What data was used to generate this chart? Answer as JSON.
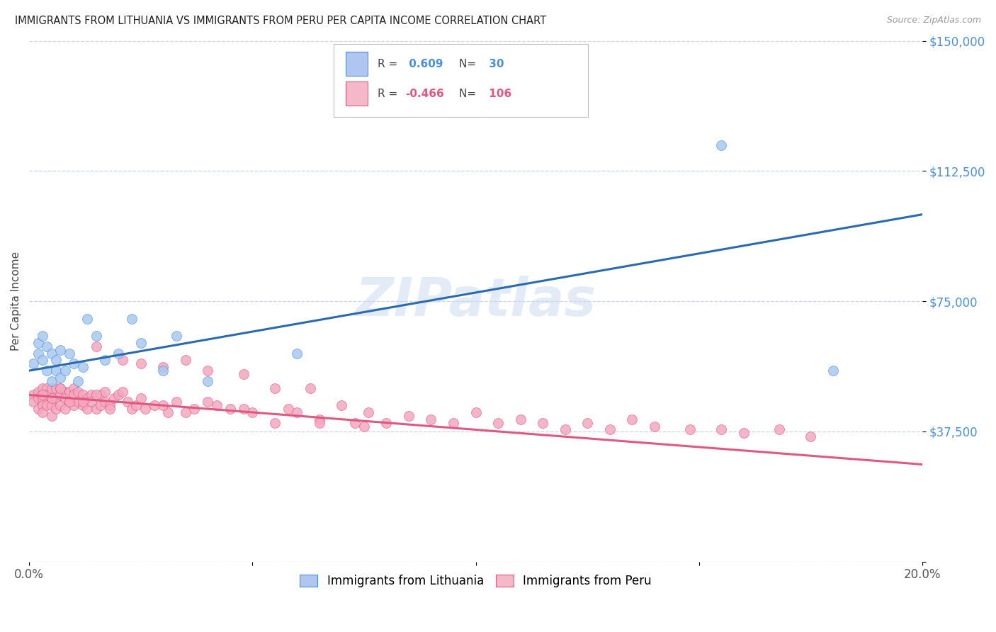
{
  "title": "IMMIGRANTS FROM LITHUANIA VS IMMIGRANTS FROM PERU PER CAPITA INCOME CORRELATION CHART",
  "source": "Source: ZipAtlas.com",
  "ylabel": "Per Capita Income",
  "x_min": 0.0,
  "x_max": 0.2,
  "y_min": 0,
  "y_max": 150000,
  "x_ticks": [
    0.0,
    0.05,
    0.1,
    0.15,
    0.2
  ],
  "x_tick_labels": [
    "0.0%",
    "",
    "",
    "",
    "20.0%"
  ],
  "y_ticks": [
    0,
    37500,
    75000,
    112500,
    150000
  ],
  "y_tick_labels": [
    "",
    "$37,500",
    "$75,000",
    "$112,500",
    "$150,000"
  ],
  "legend_labels": [
    "Immigrants from Lithuania",
    "Immigrants from Peru"
  ],
  "legend_box_colors": [
    "#aec6f0",
    "#f4b8c8"
  ],
  "blue_color": "#4a90d9",
  "pink_color": "#e05880",
  "blue_line_color": "#2a6aaf",
  "pink_line_color": "#e05880",
  "blue_dot_facecolor": "#aac8f0",
  "pink_dot_facecolor": "#f4a8c0",
  "grid_color": "#c8d4e8",
  "background_color": "#ffffff",
  "watermark": "ZIPatlas",
  "R_blue": 0.609,
  "N_blue": 30,
  "R_pink": -0.466,
  "N_pink": 106,
  "blue_line_y0": 55000,
  "blue_line_y1": 100000,
  "pink_line_y0": 48000,
  "pink_line_y1": 28000,
  "blue_scatter_x": [
    0.001,
    0.002,
    0.002,
    0.003,
    0.003,
    0.004,
    0.004,
    0.005,
    0.005,
    0.006,
    0.006,
    0.007,
    0.007,
    0.008,
    0.009,
    0.01,
    0.011,
    0.012,
    0.013,
    0.015,
    0.017,
    0.02,
    0.023,
    0.025,
    0.03,
    0.033,
    0.04,
    0.06,
    0.155,
    0.18
  ],
  "blue_scatter_y": [
    57000,
    63000,
    60000,
    65000,
    58000,
    62000,
    55000,
    60000,
    52000,
    58000,
    55000,
    61000,
    53000,
    55000,
    60000,
    57000,
    52000,
    56000,
    70000,
    65000,
    58000,
    60000,
    70000,
    63000,
    55000,
    65000,
    52000,
    60000,
    120000,
    55000
  ],
  "pink_scatter_x": [
    0.001,
    0.001,
    0.002,
    0.002,
    0.002,
    0.003,
    0.003,
    0.003,
    0.003,
    0.004,
    0.004,
    0.004,
    0.005,
    0.005,
    0.005,
    0.005,
    0.006,
    0.006,
    0.006,
    0.007,
    0.007,
    0.007,
    0.008,
    0.008,
    0.008,
    0.009,
    0.009,
    0.01,
    0.01,
    0.01,
    0.011,
    0.011,
    0.012,
    0.012,
    0.013,
    0.013,
    0.014,
    0.014,
    0.015,
    0.015,
    0.016,
    0.016,
    0.017,
    0.017,
    0.018,
    0.019,
    0.02,
    0.021,
    0.022,
    0.023,
    0.024,
    0.025,
    0.026,
    0.028,
    0.03,
    0.031,
    0.033,
    0.035,
    0.037,
    0.04,
    0.042,
    0.045,
    0.048,
    0.05,
    0.055,
    0.058,
    0.06,
    0.063,
    0.065,
    0.07,
    0.073,
    0.076,
    0.08,
    0.085,
    0.09,
    0.095,
    0.1,
    0.105,
    0.11,
    0.115,
    0.12,
    0.125,
    0.13,
    0.135,
    0.14,
    0.148,
    0.155,
    0.16,
    0.168,
    0.175,
    0.003,
    0.005,
    0.007,
    0.009,
    0.012,
    0.015,
    0.018,
    0.021,
    0.025,
    0.03,
    0.035,
    0.04,
    0.048,
    0.055,
    0.065,
    0.075
  ],
  "pink_scatter_y": [
    48000,
    46000,
    49000,
    47000,
    44000,
    50000,
    47000,
    45000,
    43000,
    50000,
    48000,
    45000,
    50000,
    47000,
    45000,
    42000,
    50000,
    47000,
    44000,
    50000,
    48000,
    45000,
    49000,
    47000,
    44000,
    49000,
    46000,
    50000,
    48000,
    45000,
    49000,
    46000,
    48000,
    45000,
    47000,
    44000,
    48000,
    46000,
    62000,
    44000,
    48000,
    45000,
    49000,
    46000,
    45000,
    47000,
    48000,
    58000,
    46000,
    44000,
    45000,
    57000,
    44000,
    45000,
    56000,
    43000,
    46000,
    58000,
    44000,
    55000,
    45000,
    44000,
    54000,
    43000,
    50000,
    44000,
    43000,
    50000,
    41000,
    45000,
    40000,
    43000,
    40000,
    42000,
    41000,
    40000,
    43000,
    40000,
    41000,
    40000,
    38000,
    40000,
    38000,
    41000,
    39000,
    38000,
    38000,
    37000,
    38000,
    36000,
    48000,
    47000,
    50000,
    46000,
    46000,
    48000,
    44000,
    49000,
    47000,
    45000,
    43000,
    46000,
    44000,
    40000,
    40000,
    39000
  ]
}
